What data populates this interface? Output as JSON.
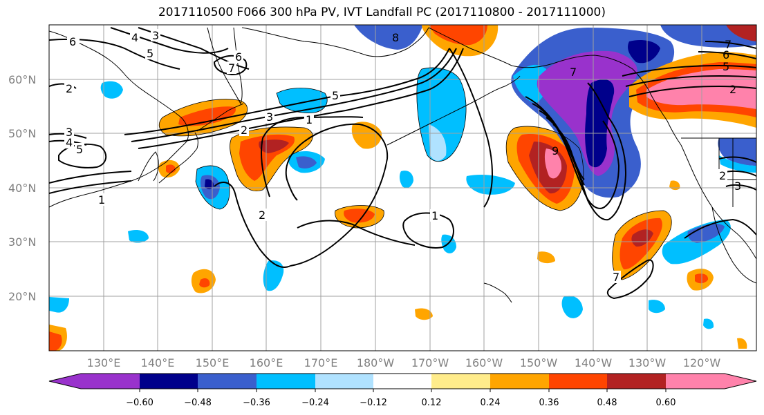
{
  "title": "2017110500 F066 300 hPa PV, IVT Landfall PC (2017110800 - 2017111000)",
  "map": {
    "lat_labels": [
      "60°N",
      "50°N",
      "40°N",
      "30°N",
      "20°N"
    ],
    "lon_labels": [
      "130°E",
      "140°E",
      "150°E",
      "160°E",
      "170°E",
      "180°W",
      "170°W",
      "160°W",
      "150°W",
      "140°W",
      "130°W",
      "120°W"
    ],
    "contour_labels": [
      "6",
      "4",
      "5",
      "3",
      "2",
      "6",
      "7",
      "5",
      "3",
      "2",
      "3",
      "4",
      "5",
      "1",
      "1",
      "2",
      "1",
      "9",
      "7",
      "8",
      "2",
      "7",
      "6",
      "5",
      "2",
      "3",
      "7"
    ]
  },
  "colorbar": {
    "ticks": [
      "−0.60",
      "−0.48",
      "−0.36",
      "−0.24",
      "−0.12",
      "0.12",
      "0.24",
      "0.36",
      "0.48",
      "0.60"
    ],
    "colors": [
      "#9932CC",
      "#00008B",
      "#3A5FCD",
      "#00BFFF",
      "#B0E2FF",
      "#FFFFFF",
      "#FFEC8B",
      "#FFA500",
      "#FF4500",
      "#B22222",
      "#FF82AB"
    ]
  }
}
